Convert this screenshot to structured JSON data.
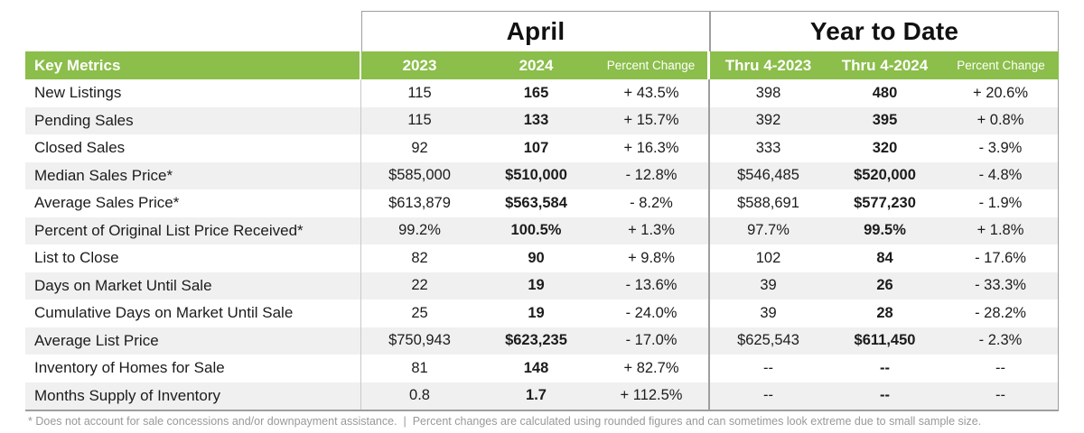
{
  "table": {
    "key_metrics_label": "Key Metrics",
    "sections": [
      {
        "title": "April",
        "columns": [
          "2023",
          "2024",
          "Percent Change"
        ]
      },
      {
        "title": "Year to Date",
        "columns": [
          "Thru 4-2023",
          "Thru 4-2024",
          "Percent Change"
        ]
      }
    ],
    "rows": [
      {
        "label": "New Listings",
        "values": [
          "115",
          "165",
          "+ 43.5%",
          "398",
          "480",
          "+ 20.6%"
        ]
      },
      {
        "label": "Pending Sales",
        "values": [
          "115",
          "133",
          "+ 15.7%",
          "392",
          "395",
          "+ 0.8%"
        ]
      },
      {
        "label": "Closed Sales",
        "values": [
          "92",
          "107",
          "+ 16.3%",
          "333",
          "320",
          "- 3.9%"
        ]
      },
      {
        "label": "Median Sales Price*",
        "values": [
          "$585,000",
          "$510,000",
          "- 12.8%",
          "$546,485",
          "$520,000",
          "- 4.8%"
        ]
      },
      {
        "label": "Average Sales Price*",
        "values": [
          "$613,879",
          "$563,584",
          "- 8.2%",
          "$588,691",
          "$577,230",
          "- 1.9%"
        ]
      },
      {
        "label": "Percent of Original List Price Received*",
        "values": [
          "99.2%",
          "100.5%",
          "+ 1.3%",
          "97.7%",
          "99.5%",
          "+ 1.8%"
        ]
      },
      {
        "label": "List to Close",
        "values": [
          "82",
          "90",
          "+ 9.8%",
          "102",
          "84",
          "- 17.6%"
        ]
      },
      {
        "label": "Days on Market Until Sale",
        "values": [
          "22",
          "19",
          "- 13.6%",
          "39",
          "26",
          "- 33.3%"
        ]
      },
      {
        "label": "Cumulative Days on Market Until Sale",
        "values": [
          "25",
          "19",
          "- 24.0%",
          "39",
          "28",
          "- 28.2%"
        ]
      },
      {
        "label": "Average List Price",
        "values": [
          "$750,943",
          "$623,235",
          "- 17.0%",
          "$625,543",
          "$611,450",
          "- 2.3%"
        ]
      },
      {
        "label": "Inventory of Homes for Sale",
        "values": [
          "81",
          "148",
          "+ 82.7%",
          "--",
          "--",
          "--"
        ]
      },
      {
        "label": "Months Supply of Inventory",
        "values": [
          "0.8",
          "1.7",
          "+ 112.5%",
          "--",
          "--",
          "--"
        ]
      }
    ],
    "footnote": "* Does not account for sale concessions and/or downpayment assistance.  |  Percent changes are calculated using rounded figures and can sometimes look extreme due to small sample size.",
    "colors": {
      "header_green": "#8bbe4a",
      "row_alt": "#f0f0f0",
      "border_dark": "#9e9e9e",
      "border_light": "#c8c8c8",
      "footnote_gray": "#999999"
    }
  },
  "chart_data": {
    "type": "table",
    "title": "Key Metrics — April and Year to Date",
    "column_groups": [
      {
        "label": "April",
        "columns": [
          "2023",
          "2024",
          "Percent Change"
        ]
      },
      {
        "label": "Year to Date",
        "columns": [
          "Thru 4-2023",
          "Thru 4-2024",
          "Percent Change"
        ]
      }
    ],
    "metrics": [
      {
        "name": "New Listings",
        "april": {
          "y2023": 115,
          "y2024": 165,
          "pct_change": 43.5
        },
        "ytd": {
          "thru_2023": 398,
          "thru_2024": 480,
          "pct_change": 20.6
        }
      },
      {
        "name": "Pending Sales",
        "april": {
          "y2023": 115,
          "y2024": 133,
          "pct_change": 15.7
        },
        "ytd": {
          "thru_2023": 392,
          "thru_2024": 395,
          "pct_change": 0.8
        }
      },
      {
        "name": "Closed Sales",
        "april": {
          "y2023": 92,
          "y2024": 107,
          "pct_change": 16.3
        },
        "ytd": {
          "thru_2023": 333,
          "thru_2024": 320,
          "pct_change": -3.9
        }
      },
      {
        "name": "Median Sales Price*",
        "april": {
          "y2023": 585000,
          "y2024": 510000,
          "pct_change": -12.8
        },
        "ytd": {
          "thru_2023": 546485,
          "thru_2024": 520000,
          "pct_change": -4.8
        }
      },
      {
        "name": "Average Sales Price*",
        "april": {
          "y2023": 613879,
          "y2024": 563584,
          "pct_change": -8.2
        },
        "ytd": {
          "thru_2023": 588691,
          "thru_2024": 577230,
          "pct_change": -1.9
        }
      },
      {
        "name": "Percent of Original List Price Received*",
        "april": {
          "y2023": 99.2,
          "y2024": 100.5,
          "pct_change": 1.3
        },
        "ytd": {
          "thru_2023": 97.7,
          "thru_2024": 99.5,
          "pct_change": 1.8
        }
      },
      {
        "name": "List to Close",
        "april": {
          "y2023": 82,
          "y2024": 90,
          "pct_change": 9.8
        },
        "ytd": {
          "thru_2023": 102,
          "thru_2024": 84,
          "pct_change": -17.6
        }
      },
      {
        "name": "Days on Market Until Sale",
        "april": {
          "y2023": 22,
          "y2024": 19,
          "pct_change": -13.6
        },
        "ytd": {
          "thru_2023": 39,
          "thru_2024": 26,
          "pct_change": -33.3
        }
      },
      {
        "name": "Cumulative Days on Market Until Sale",
        "april": {
          "y2023": 25,
          "y2024": 19,
          "pct_change": -24.0
        },
        "ytd": {
          "thru_2023": 39,
          "thru_2024": 28,
          "pct_change": -28.2
        }
      },
      {
        "name": "Average List Price",
        "april": {
          "y2023": 750943,
          "y2024": 623235,
          "pct_change": -17.0
        },
        "ytd": {
          "thru_2023": 625543,
          "thru_2024": 611450,
          "pct_change": -2.3
        }
      },
      {
        "name": "Inventory of Homes for Sale",
        "april": {
          "y2023": 81,
          "y2024": 148,
          "pct_change": 82.7
        },
        "ytd": {
          "thru_2023": null,
          "thru_2024": null,
          "pct_change": null
        }
      },
      {
        "name": "Months Supply of Inventory",
        "april": {
          "y2023": 0.8,
          "y2024": 1.7,
          "pct_change": 112.5
        },
        "ytd": {
          "thru_2023": null,
          "thru_2024": null,
          "pct_change": null
        }
      }
    ]
  }
}
